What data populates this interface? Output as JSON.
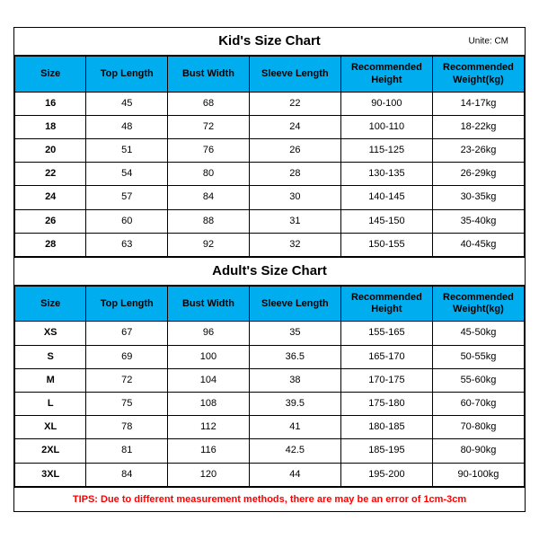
{
  "colors": {
    "header_bg": "#00aeef",
    "tips_color": "#ff0000",
    "border": "#000000",
    "background": "#ffffff"
  },
  "kids": {
    "title": "Kid's Size Chart",
    "unit_label": "Unite: CM",
    "columns": [
      "Size",
      "Top Length",
      "Bust Width",
      "Sleeve Length",
      "Recommended Height",
      "Recommended Weight(kg)"
    ],
    "rows": [
      [
        "16",
        "45",
        "68",
        "22",
        "90-100",
        "14-17kg"
      ],
      [
        "18",
        "48",
        "72",
        "24",
        "100-110",
        "18-22kg"
      ],
      [
        "20",
        "51",
        "76",
        "26",
        "115-125",
        "23-26kg"
      ],
      [
        "22",
        "54",
        "80",
        "28",
        "130-135",
        "26-29kg"
      ],
      [
        "24",
        "57",
        "84",
        "30",
        "140-145",
        "30-35kg"
      ],
      [
        "26",
        "60",
        "88",
        "31",
        "145-150",
        "35-40kg"
      ],
      [
        "28",
        "63",
        "92",
        "32",
        "150-155",
        "40-45kg"
      ]
    ]
  },
  "adults": {
    "title": "Adult's Size Chart",
    "columns": [
      "Size",
      "Top Length",
      "Bust Width",
      "Sleeve Length",
      "Recommended Height",
      "Recommended Weight(kg)"
    ],
    "rows": [
      [
        "XS",
        "67",
        "96",
        "35",
        "155-165",
        "45-50kg"
      ],
      [
        "S",
        "69",
        "100",
        "36.5",
        "165-170",
        "50-55kg"
      ],
      [
        "M",
        "72",
        "104",
        "38",
        "170-175",
        "55-60kg"
      ],
      [
        "L",
        "75",
        "108",
        "39.5",
        "175-180",
        "60-70kg"
      ],
      [
        "XL",
        "78",
        "112",
        "41",
        "180-185",
        "70-80kg"
      ],
      [
        "2XL",
        "81",
        "116",
        "42.5",
        "185-195",
        "80-90kg"
      ],
      [
        "3XL",
        "84",
        "120",
        "44",
        "195-200",
        "90-100kg"
      ]
    ]
  },
  "tips": "TIPS: Due to different measurement methods, there are may be an error of 1cm-3cm"
}
